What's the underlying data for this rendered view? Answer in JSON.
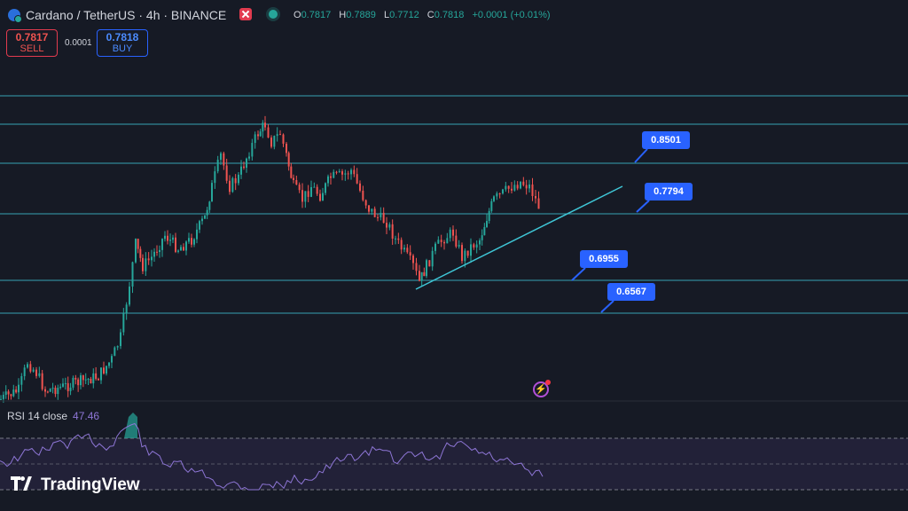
{
  "header": {
    "symbol_title": "Cardano / TetherUS · 4h · BINANCE",
    "ohlc": [
      {
        "k": "O",
        "v": "0.7817"
      },
      {
        "k": "H",
        "v": "0.7889"
      },
      {
        "k": "L",
        "v": "0.7712"
      },
      {
        "k": "C",
        "v": "0.7818"
      },
      {
        "k": "",
        "v": "+0.0001 (+0.01%)"
      }
    ]
  },
  "trade": {
    "sell_price": "0.7817",
    "sell_label": "SELL",
    "spread": "0.0001",
    "buy_price": "0.7818",
    "buy_label": "BUY"
  },
  "levels": [
    {
      "label": "0.8501"
    },
    {
      "label": "0.7794"
    },
    {
      "label": "0.6955"
    },
    {
      "label": "0.6567"
    }
  ],
  "rsi": {
    "label": "RSI 14 close",
    "value": "47.46"
  },
  "branding": {
    "logo_text": "TradingView"
  },
  "colors": {
    "background": "#161a25",
    "up": "#26a69a",
    "down": "#ef5350",
    "level_line": "#3fc6d6",
    "label": "#2962ff",
    "rsi_line": "#8e76d6"
  },
  "icons": [
    "cardano-icon",
    "close-icon",
    "status-dot-icon",
    "flash-icon",
    "tradingview-logo-icon"
  ]
}
